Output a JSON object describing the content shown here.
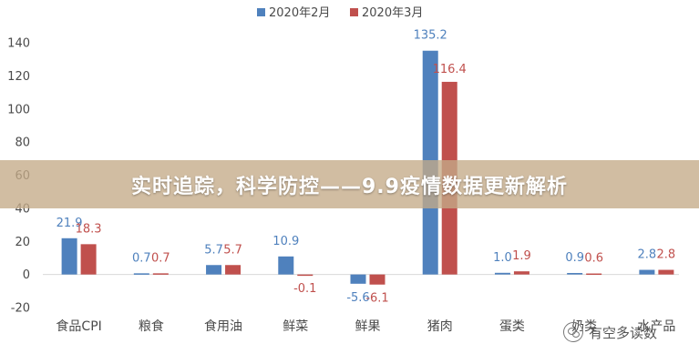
{
  "chart_data": {
    "type": "bar",
    "title": "",
    "xlabel": "",
    "ylabel": "",
    "ylim": [
      -20,
      140
    ],
    "yticks": [
      140,
      120,
      100,
      80,
      60,
      40,
      20,
      0,
      -20
    ],
    "grid": false,
    "legend_position": "top-center",
    "categories": [
      "食品CPI",
      "粮食",
      "食用油",
      "鲜菜",
      "鲜果",
      "猪肉",
      "蛋类",
      "奶类",
      "水产品"
    ],
    "series": [
      {
        "name": "2020年2月",
        "color": "#4f81bd",
        "values": [
          21.9,
          0.7,
          5.7,
          10.9,
          -5.6,
          135.2,
          1.0,
          0.9,
          2.8
        ],
        "labels": [
          "21.9",
          "0.7",
          "5.7",
          "10.9",
          "-5.6",
          "135.2",
          "1.0",
          "0.9",
          "2.8"
        ]
      },
      {
        "name": "2020年3月",
        "color": "#c0504d",
        "values": [
          18.3,
          0.7,
          5.7,
          -0.1,
          -6.1,
          116.4,
          1.9,
          0.6,
          2.8
        ],
        "labels": [
          "18.3",
          "0.7",
          "5.7",
          "-0.1",
          "-6.1",
          "116.4",
          "1.9",
          "0.6",
          "2.8"
        ]
      }
    ]
  },
  "overlay": {
    "title": "实时追踪，科学防控——9.9疫情数据更新解析"
  },
  "watermark": {
    "text": "有空多读数",
    "icon": "wechat-icon"
  }
}
